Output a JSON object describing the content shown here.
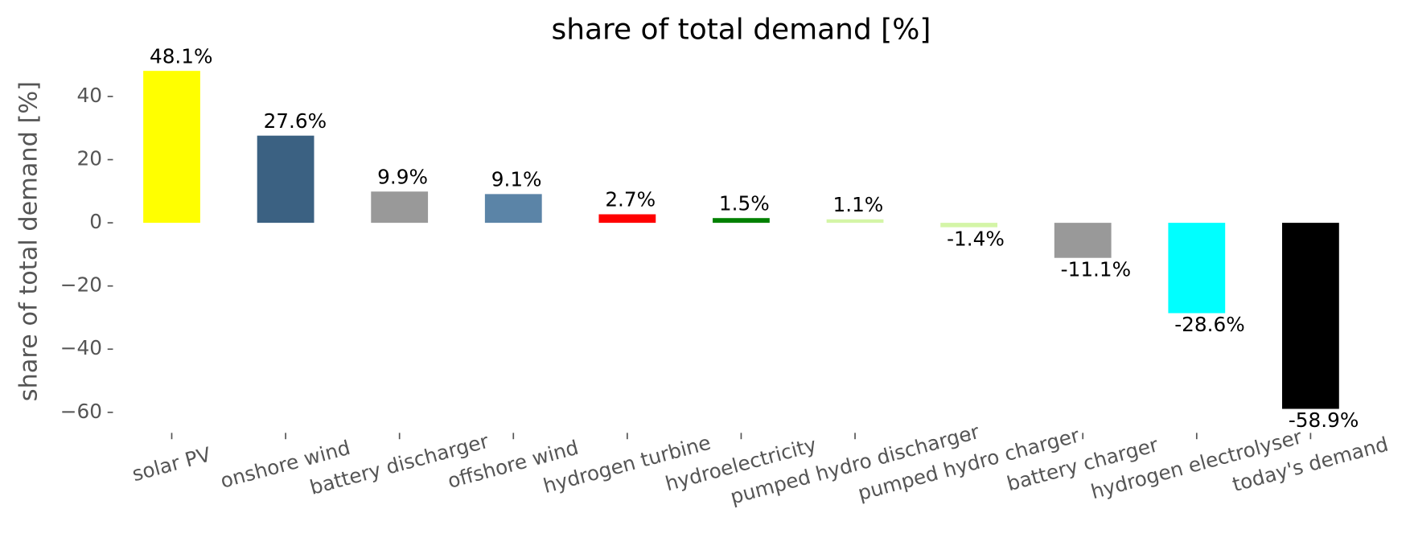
{
  "chart_data": {
    "type": "bar",
    "title": "share of total demand [%]",
    "y_label": "share of total demand [%]",
    "categories": [
      "solar PV",
      "onshore wind",
      "battery discharger",
      "offshore wind",
      "hydrogen turbine",
      "hydroelectricity",
      "pumped hydro discharger",
      "pumped hydro charger",
      "battery charger",
      "hydrogen electrolyser",
      "today's demand"
    ],
    "values": [
      48.1,
      27.6,
      9.9,
      9.1,
      2.7,
      1.5,
      1.1,
      -1.4,
      -11.1,
      -28.6,
      -58.9
    ],
    "value_labels": [
      "48.1%",
      "27.6%",
      "9.9%",
      "9.1%",
      "2.7%",
      "1.5%",
      "1.1%",
      "-1.4%",
      "-11.1%",
      "-28.6%",
      "-58.9%"
    ],
    "colors": [
      "#ffff00",
      "#3b6182",
      "#999999",
      "#5b84a7",
      "#ff0000",
      "#008000",
      "#d4f5a7",
      "#d4f5a7",
      "#999999",
      "#00ffff",
      "#000000"
    ],
    "ylim": [
      -66.5,
      52.5
    ],
    "yticks": [
      {
        "value": -60,
        "label": "−60"
      },
      {
        "value": -40,
        "label": "−40"
      },
      {
        "value": -20,
        "label": "−20"
      },
      0,
      20,
      40
    ]
  }
}
